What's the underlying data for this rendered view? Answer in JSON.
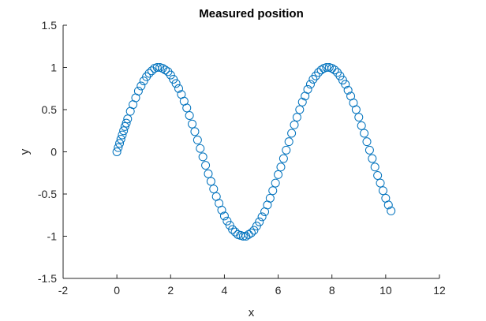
{
  "chart_data": {
    "type": "scatter",
    "title": "Measured position",
    "xlabel": "x",
    "ylabel": "y",
    "xlim": [
      -2,
      12
    ],
    "ylim": [
      -1.5,
      1.5
    ],
    "xticks": [
      -2,
      0,
      2,
      4,
      6,
      8,
      10,
      12
    ],
    "xtick_labels": [
      "-2",
      "0",
      "2",
      "4",
      "6",
      "8",
      "10",
      "12"
    ],
    "yticks": [
      -1.5,
      -1,
      -0.5,
      0,
      0.5,
      1,
      1.5
    ],
    "ytick_labels": [
      "-1.5",
      "-1",
      "-0.5",
      "0",
      "0.5",
      "1",
      "1.5"
    ],
    "grid": false,
    "marker": "open-circle",
    "marker_color": "#0072BD",
    "series": [
      {
        "x": [
          0.0,
          0.05,
          0.1,
          0.15,
          0.2,
          0.25,
          0.3,
          0.35,
          0.4,
          0.5,
          0.6,
          0.7,
          0.8,
          0.9,
          1.0,
          1.1,
          1.2,
          1.3,
          1.4,
          1.5,
          1.6,
          1.7,
          1.8,
          1.9,
          2.0,
          2.1,
          2.2,
          2.3,
          2.4,
          2.5,
          2.6,
          2.7,
          2.8,
          2.9,
          3.0,
          3.1,
          3.2,
          3.3,
          3.4,
          3.5,
          3.6,
          3.7,
          3.8,
          3.9,
          4.0,
          4.1,
          4.2,
          4.3,
          4.4,
          4.5,
          4.6,
          4.7,
          4.8,
          4.9,
          5.0,
          5.1,
          5.2,
          5.3,
          5.4,
          5.5,
          5.6,
          5.7,
          5.8,
          5.9,
          6.0,
          6.1,
          6.2,
          6.3,
          6.4,
          6.5,
          6.6,
          6.7,
          6.8,
          6.9,
          7.0,
          7.1,
          7.2,
          7.3,
          7.4,
          7.5,
          7.6,
          7.7,
          7.8,
          7.9,
          8.0,
          8.1,
          8.2,
          8.3,
          8.4,
          8.5,
          8.6,
          8.7,
          8.8,
          8.9,
          9.0,
          9.1,
          9.2,
          9.3,
          9.4,
          9.5,
          9.6,
          9.7,
          9.8,
          9.9,
          10.0,
          10.1,
          10.2
        ],
        "y": [
          0.0,
          0.05,
          0.1,
          0.15,
          0.2,
          0.25,
          0.3,
          0.34,
          0.39,
          0.48,
          0.56,
          0.64,
          0.72,
          0.78,
          0.84,
          0.89,
          0.93,
          0.96,
          0.99,
          1.0,
          1.0,
          0.99,
          0.97,
          0.95,
          0.91,
          0.86,
          0.81,
          0.75,
          0.68,
          0.6,
          0.52,
          0.43,
          0.33,
          0.24,
          0.14,
          0.04,
          -0.06,
          -0.16,
          -0.26,
          -0.35,
          -0.44,
          -0.53,
          -0.61,
          -0.69,
          -0.76,
          -0.82,
          -0.87,
          -0.92,
          -0.95,
          -0.98,
          -0.99,
          -1.0,
          -1.0,
          -0.98,
          -0.96,
          -0.93,
          -0.88,
          -0.83,
          -0.77,
          -0.71,
          -0.63,
          -0.55,
          -0.46,
          -0.37,
          -0.27,
          -0.18,
          -0.08,
          0.02,
          0.12,
          0.22,
          0.32,
          0.41,
          0.5,
          0.59,
          0.66,
          0.74,
          0.8,
          0.86,
          0.9,
          0.94,
          0.97,
          0.99,
          1.0,
          1.0,
          0.99,
          0.97,
          0.94,
          0.9,
          0.85,
          0.8,
          0.73,
          0.66,
          0.58,
          0.5,
          0.41,
          0.31,
          0.22,
          0.12,
          0.02,
          -0.08,
          -0.18,
          -0.28,
          -0.37,
          -0.46,
          -0.55,
          -0.63,
          -0.7
        ],
        "note_placeholder": ""
      }
    ]
  }
}
